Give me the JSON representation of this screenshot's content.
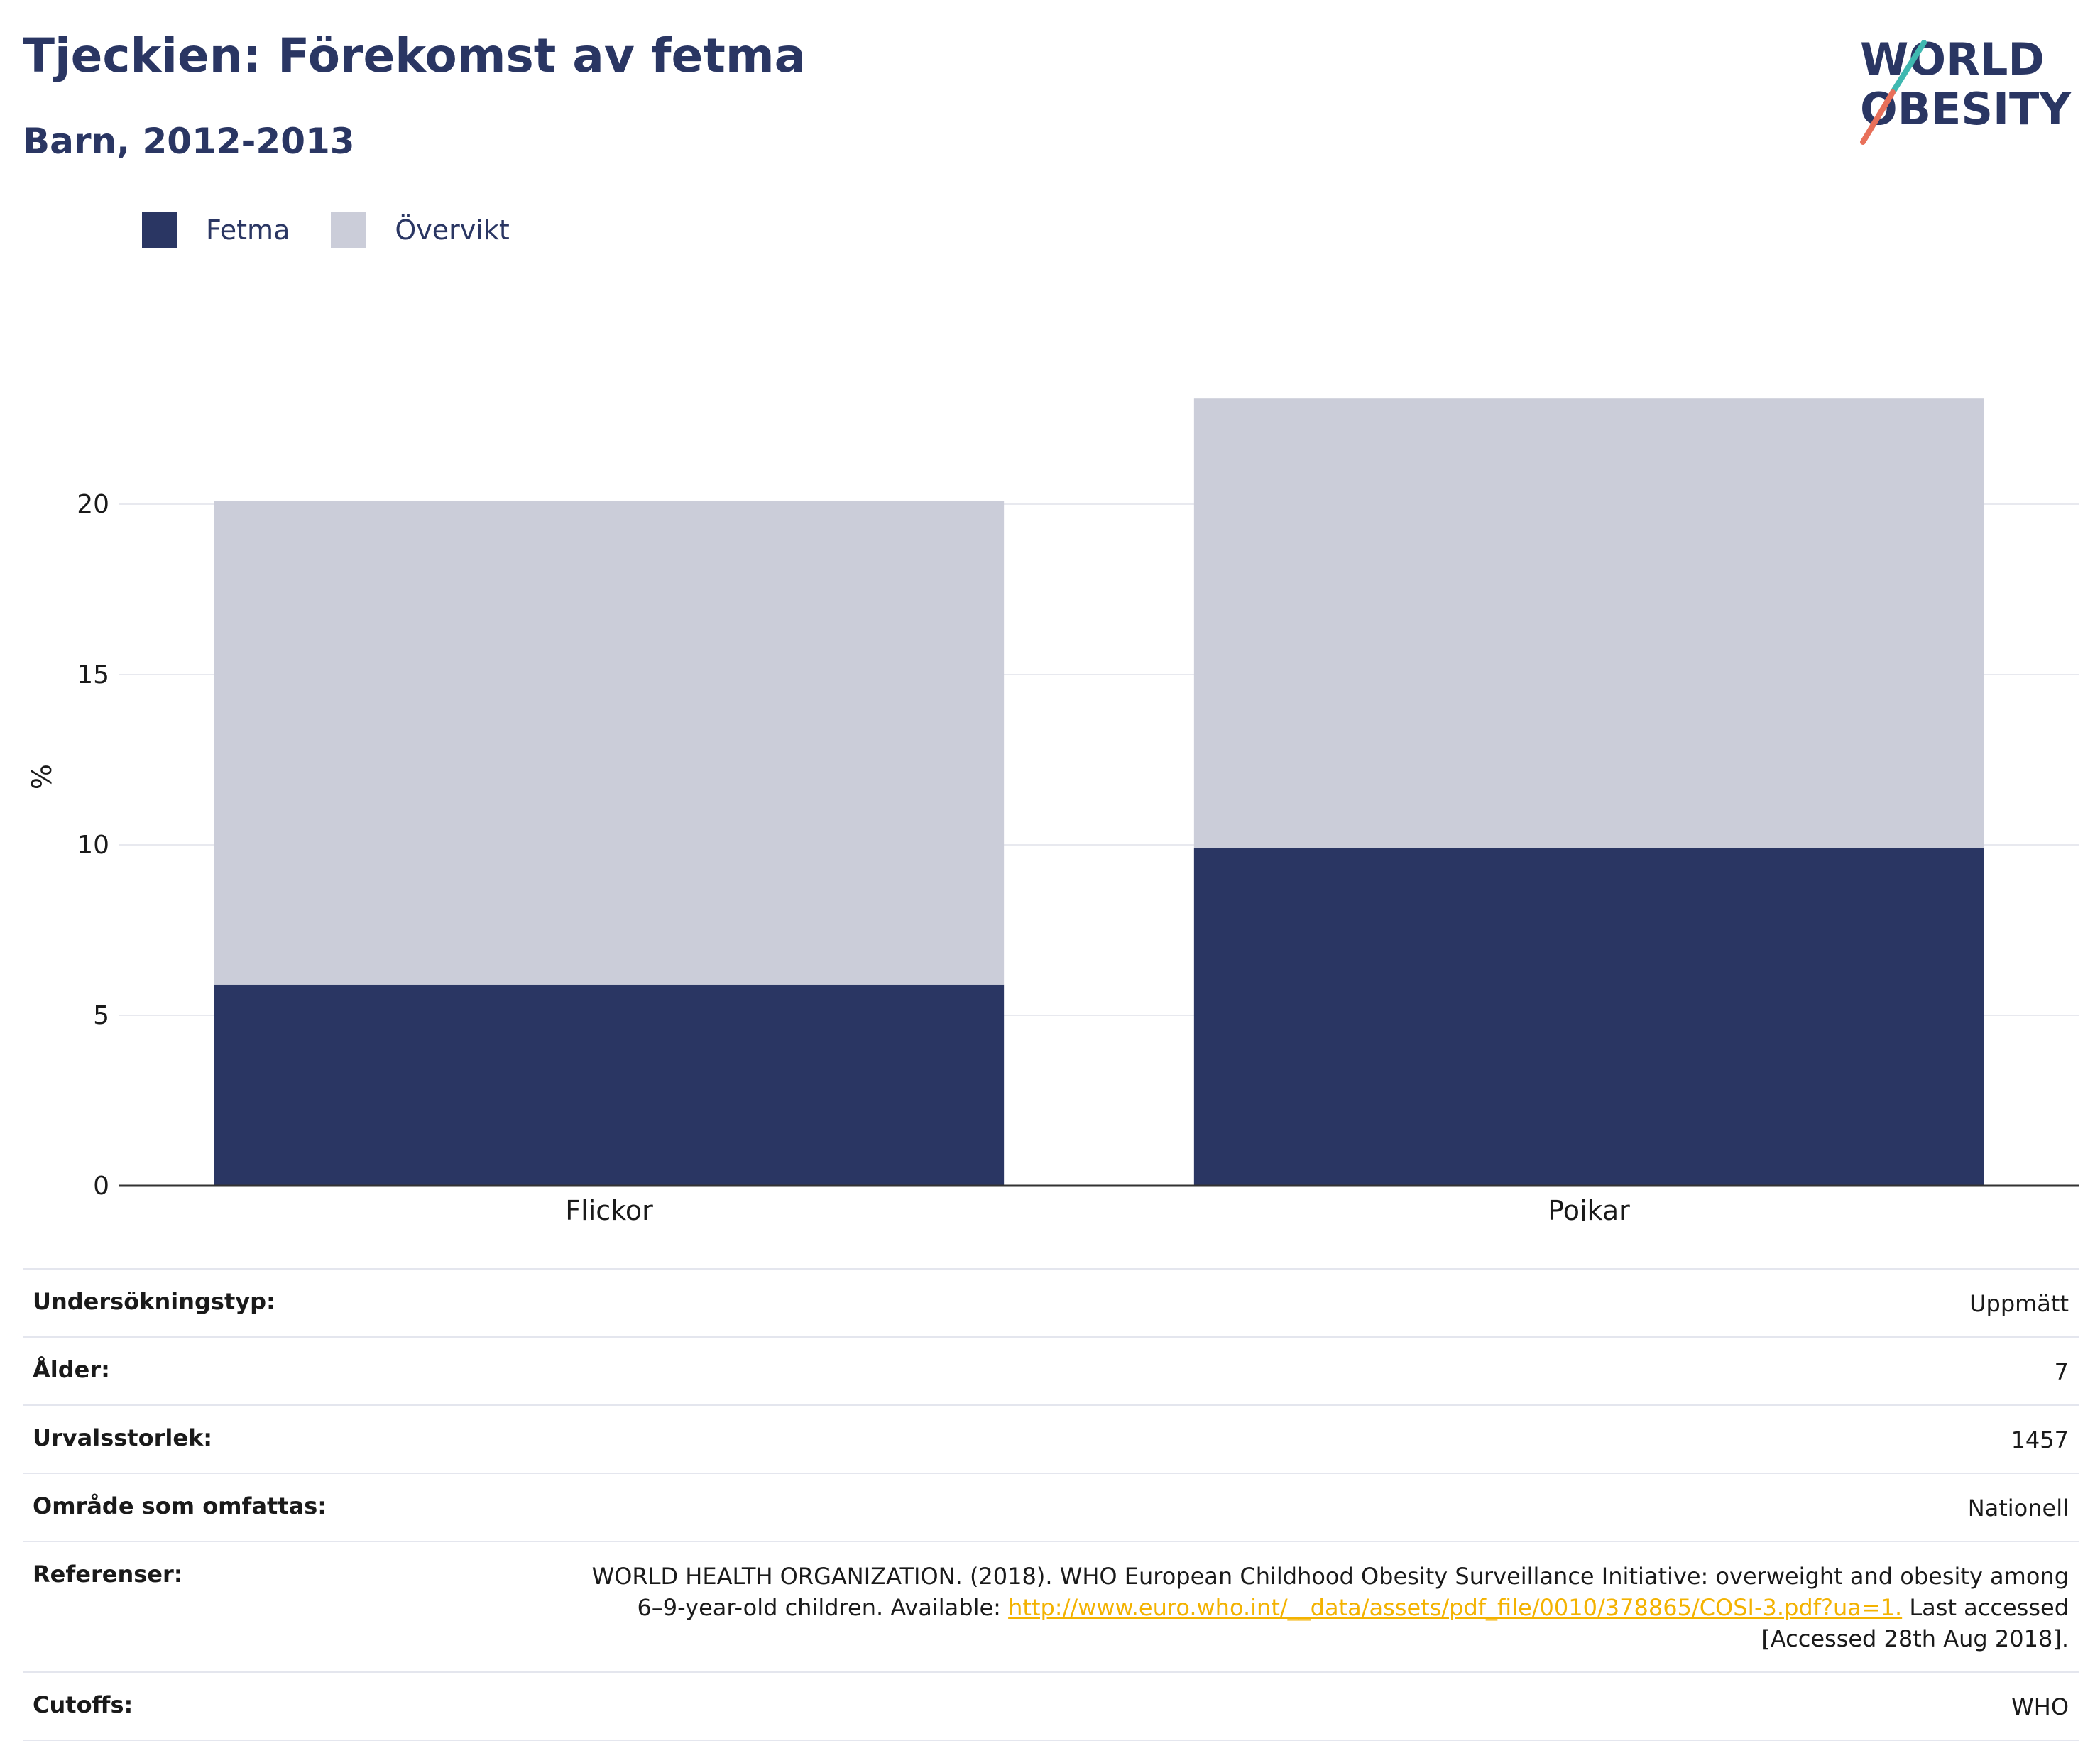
{
  "header": {
    "title": "Tjeckien: Förekomst av fetma",
    "subtitle": "Barn, 2012-2013"
  },
  "logo": {
    "line1": "WORLD",
    "line2": "OBESITY"
  },
  "legend": [
    {
      "label": "Fetma",
      "color": "#2a3663"
    },
    {
      "label": "Övervikt",
      "color": "#cbcdd9"
    }
  ],
  "chart_data": {
    "type": "bar",
    "stacked": true,
    "categories": [
      "Flickor",
      "Pojkar"
    ],
    "series": [
      {
        "name": "Fetma",
        "values": [
          5.9,
          9.9
        ],
        "color": "#2a3663"
      },
      {
        "name": "Övervikt",
        "values": [
          14.2,
          13.2
        ],
        "color": "#cbcdd9"
      }
    ],
    "ylabel": "%",
    "ylim": [
      0,
      24
    ],
    "yticks": [
      0,
      5,
      10,
      15,
      20
    ],
    "grid": true,
    "legend_position": "top-left"
  },
  "meta": {
    "rows": [
      {
        "label": "Undersökningstyp:",
        "value": "Uppmätt"
      },
      {
        "label": "Ålder:",
        "value": "7"
      },
      {
        "label": "Urvalsstorlek:",
        "value": "1457"
      },
      {
        "label": "Område som omfattas:",
        "value": "Nationell"
      }
    ],
    "references": {
      "label": "Referenser:",
      "text_before": "WORLD HEALTH ORGANIZATION. (2018). WHO European Childhood Obesity Surveillance Initiative: overweight and obesity among 6–9-year-old children. Available: ",
      "link": "http://www.euro.who.int/__data/assets/pdf_file/0010/378865/COSI-3.pdf?ua=1.",
      "text_after": " Last accessed [Accessed 28th Aug 2018]."
    },
    "cutoffs": {
      "label": "Cutoffs:",
      "value": "WHO"
    }
  }
}
